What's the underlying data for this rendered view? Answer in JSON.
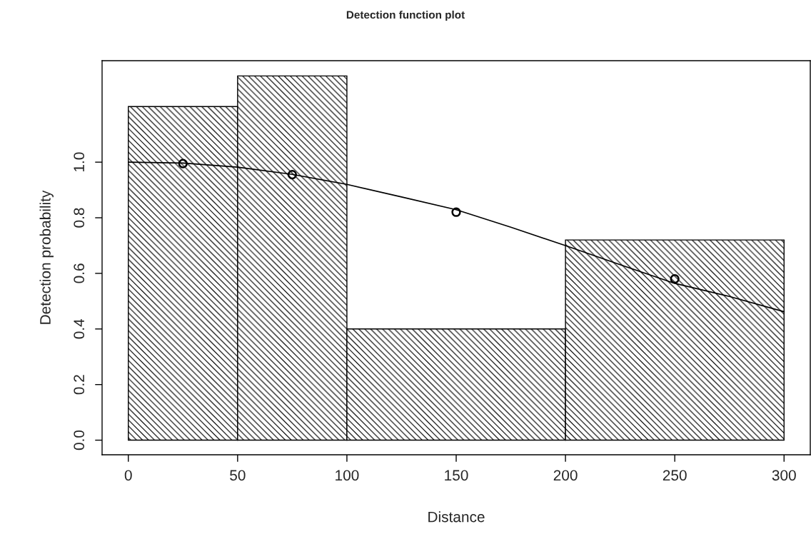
{
  "chart_data": {
    "type": "histogram",
    "title": "Detection function plot",
    "xlabel": "Distance",
    "ylabel": "Detection probability",
    "bins": [
      0,
      50,
      100,
      200,
      300
    ],
    "values": [
      1.2,
      1.31,
      0.4,
      0.72
    ],
    "color": "#000000",
    "series": [
      {
        "type": "line",
        "color": "#000000",
        "x": [
          0,
          25,
          50,
          75,
          100,
          125,
          150,
          175,
          200,
          225,
          250,
          275,
          300
        ],
        "values": [
          1.0,
          0.997,
          0.982,
          0.956,
          0.92,
          0.875,
          0.829,
          0.766,
          0.7,
          0.631,
          0.564,
          0.517,
          0.462
        ],
        "marker": "none",
        "line_style": "solid"
      },
      {
        "type": "scatter",
        "color": "#000000",
        "x": [
          25,
          75,
          150,
          250
        ],
        "values": [
          0.995,
          0.955,
          0.82,
          0.58
        ],
        "marker": "circle"
      }
    ],
    "xlim": [
      -12,
      312
    ],
    "ylim": [
      -0.0525,
      1.365
    ],
    "xticks": [
      0,
      50,
      100,
      150,
      200,
      250,
      300
    ],
    "yticks": [
      {
        "value": 0,
        "label": "0.0"
      },
      {
        "value": 0.2,
        "label": "0.2"
      },
      {
        "value": 0.4,
        "label": "0.4"
      },
      {
        "value": 0.6,
        "label": "0.6"
      },
      {
        "value": 0.8,
        "label": "0.8"
      },
      {
        "value": 1.0,
        "label": "1.0"
      }
    ],
    "grid": false,
    "legend": false
  }
}
